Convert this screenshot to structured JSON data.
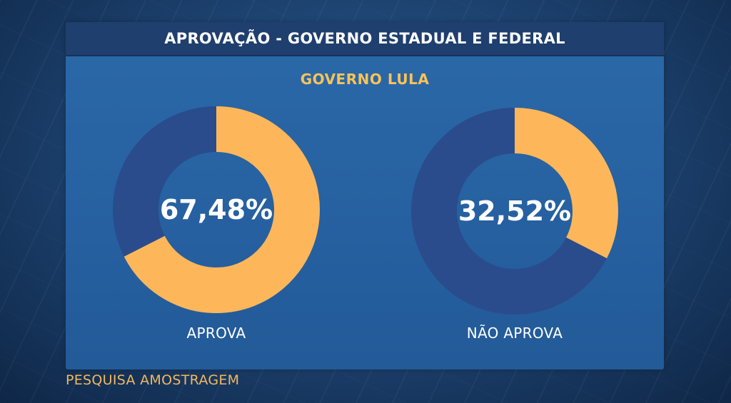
{
  "header": {
    "title": "APROVAÇÃO - GOVERNO ESTADUAL E FEDERAL"
  },
  "subtitle": "GOVERNO LULA",
  "footer": "PESQUISA AMOSTRAGEM",
  "colors": {
    "filled": "#fdb75a",
    "track": "#2a4c8c"
  },
  "chart_data": [
    {
      "type": "pie",
      "variant": "donut",
      "value": 67.48,
      "value_label": "67,48%",
      "label": "APROVA"
    },
    {
      "type": "pie",
      "variant": "donut",
      "value": 32.52,
      "value_label": "32,52%",
      "label": "NÃO APROVA"
    }
  ]
}
